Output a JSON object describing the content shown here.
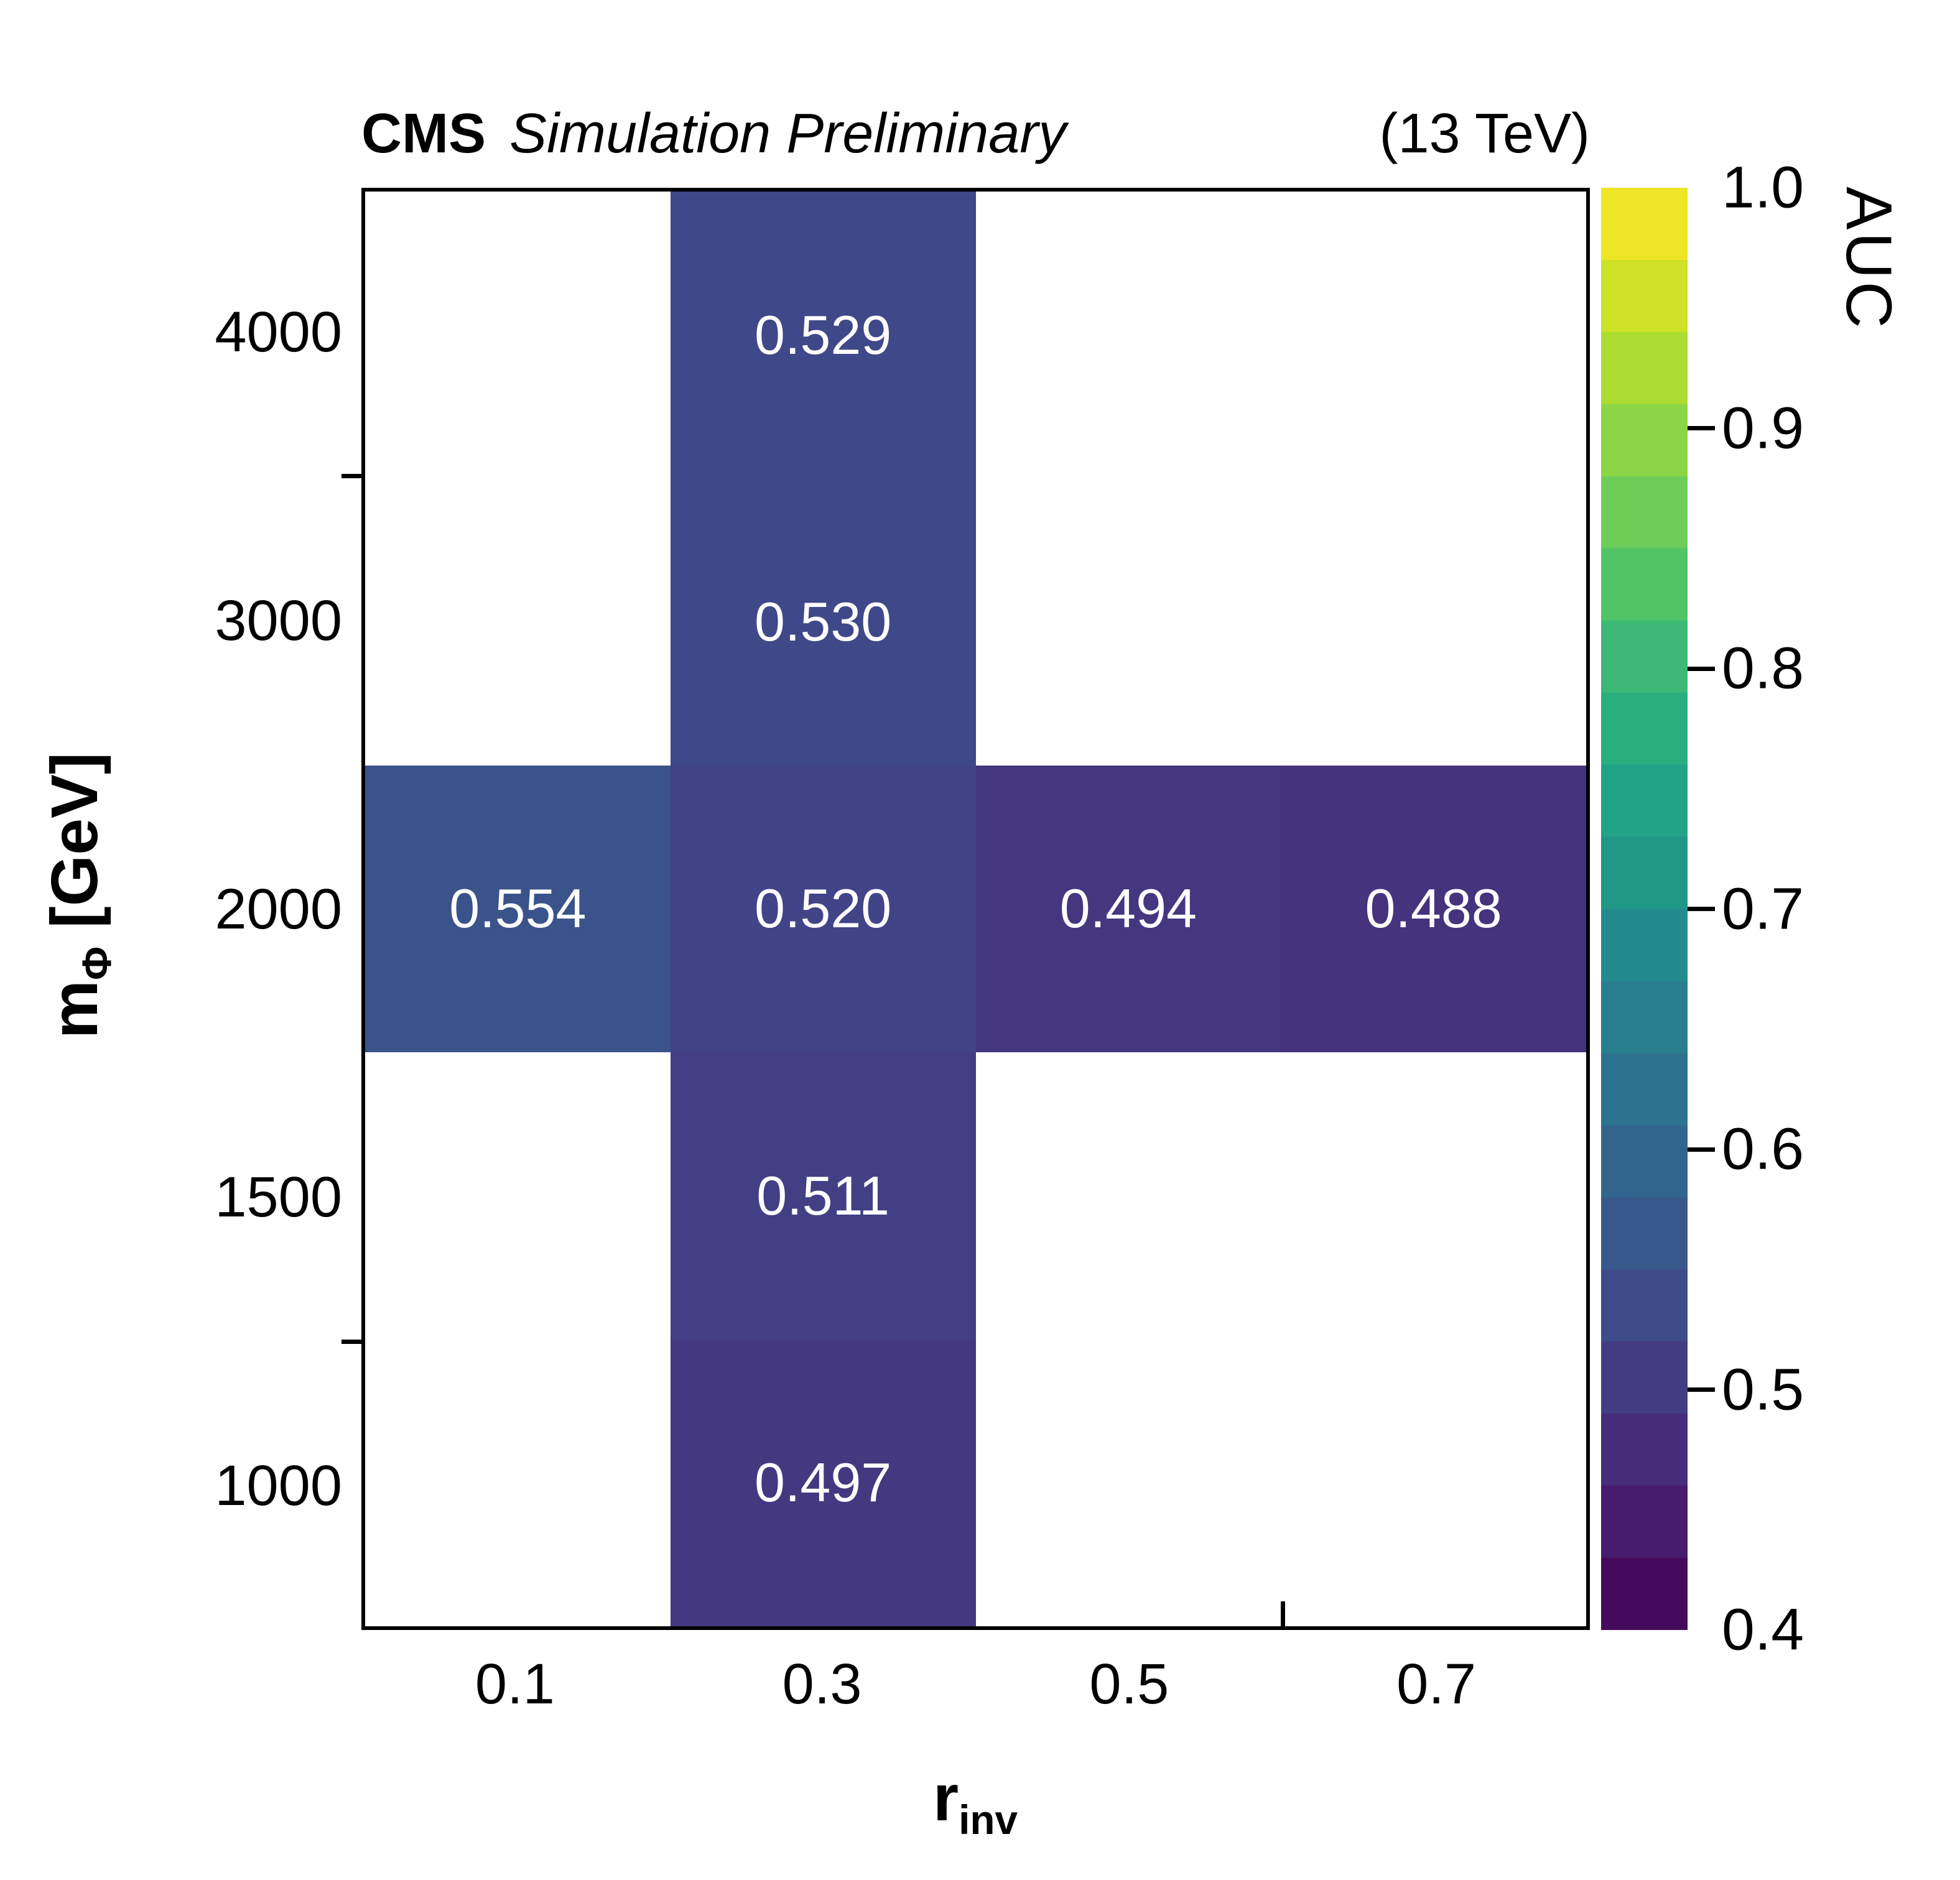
{
  "header": {
    "experiment": "CMS",
    "label": "Simulation Preliminary",
    "energy": "(13 TeV)"
  },
  "chart_data": {
    "type": "heatmap",
    "title": "CMS Simulation Preliminary (13 TeV)",
    "x_axis": {
      "title_main": "r",
      "title_sub": "inv",
      "categories": [
        "0.1",
        "0.3",
        "0.5",
        "0.7"
      ]
    },
    "y_axis": {
      "title_main": "m",
      "title_sub": "Φ",
      "title_unit": "[GeV]",
      "categories_bottom_to_top": [
        "1000",
        "1500",
        "2000",
        "3000",
        "4000"
      ]
    },
    "value_text_color": "#ffffff",
    "empty_cell_color": "#ffffff",
    "cells": [
      {
        "x": "0.3",
        "y": "4000",
        "value": 0.529,
        "label": "0.529",
        "color": "#3f4888"
      },
      {
        "x": "0.3",
        "y": "3000",
        "value": 0.53,
        "label": "0.530",
        "color": "#3f4888"
      },
      {
        "x": "0.1",
        "y": "2000",
        "value": 0.554,
        "label": "0.554",
        "color": "#3a538a"
      },
      {
        "x": "0.3",
        "y": "2000",
        "value": 0.52,
        "label": "0.520",
        "color": "#414487"
      },
      {
        "x": "0.5",
        "y": "2000",
        "value": 0.494,
        "label": "0.494",
        "color": "#44367f"
      },
      {
        "x": "0.7",
        "y": "2000",
        "value": 0.488,
        "label": "0.488",
        "color": "#45337d"
      },
      {
        "x": "0.3",
        "y": "1500",
        "value": 0.511,
        "label": "0.511",
        "color": "#423f84"
      },
      {
        "x": "0.3",
        "y": "1000",
        "value": 0.497,
        "label": "0.497",
        "color": "#443880"
      }
    ],
    "colorbar": {
      "title": "AUC",
      "min": 0.4,
      "max": 1.0,
      "tick_labels_bottom_to_top": [
        "0.4",
        "0.5",
        "0.6",
        "0.7",
        "0.8",
        "0.9",
        "1.0"
      ],
      "levels": 20,
      "band_colors_bottom_to_top": [
        "#450a5c",
        "#471b6d",
        "#462c7a",
        "#433c83",
        "#3e4b89",
        "#38588c",
        "#32658d",
        "#2d728e",
        "#287e8e",
        "#238b8d",
        "#219788",
        "#22a286",
        "#2bae7f",
        "#3cb975",
        "#52c468",
        "#6dcd59",
        "#8bd546",
        "#acdc31",
        "#cde126",
        "#ede525"
      ]
    }
  }
}
